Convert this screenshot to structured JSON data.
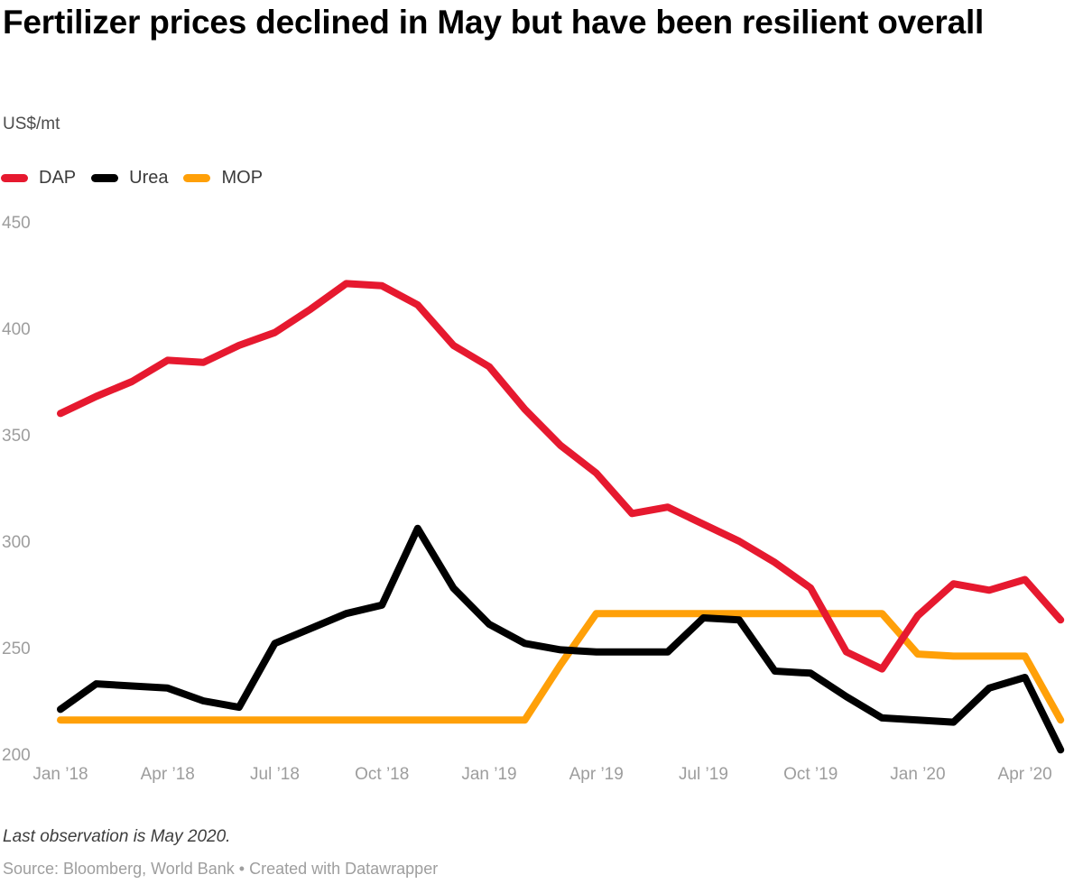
{
  "header": {
    "title": "Fertilizer prices declined in May but have been resilient overall",
    "unit": "US$/mt"
  },
  "chart_data": {
    "type": "line",
    "x_months": [
      "Jan 2018",
      "Feb 2018",
      "Mar 2018",
      "Apr 2018",
      "May 2018",
      "Jun 2018",
      "Jul 2018",
      "Aug 2018",
      "Sep 2018",
      "Oct 2018",
      "Nov 2018",
      "Dec 2018",
      "Jan 2019",
      "Feb 2019",
      "Mar 2019",
      "Apr 2019",
      "May 2019",
      "Jun 2019",
      "Jul 2019",
      "Aug 2019",
      "Sep 2019",
      "Oct 2019",
      "Nov 2019",
      "Dec 2019",
      "Jan 2020",
      "Feb 2020",
      "Mar 2020",
      "Apr 2020",
      "May 2020"
    ],
    "x_ticks": [
      {
        "label": "Jan ’18",
        "month_index": 0
      },
      {
        "label": "Apr ’18",
        "month_index": 3
      },
      {
        "label": "Jul ’18",
        "month_index": 6
      },
      {
        "label": "Oct ’18",
        "month_index": 9
      },
      {
        "label": "Jan ’19",
        "month_index": 12
      },
      {
        "label": "Apr ’19",
        "month_index": 15
      },
      {
        "label": "Jul ’19",
        "month_index": 18
      },
      {
        "label": "Oct ’19",
        "month_index": 21
      },
      {
        "label": "Jan ’20",
        "month_index": 24
      },
      {
        "label": "Apr ’20",
        "month_index": 27
      }
    ],
    "y_ticks": [
      200,
      250,
      300,
      350,
      400,
      450
    ],
    "y_range": [
      200,
      450
    ],
    "grid": "none",
    "legend_position": "top-left",
    "series": [
      {
        "name": "DAP",
        "color": "#e6192f",
        "values": [
          360,
          368,
          375,
          385,
          384,
          392,
          398,
          409,
          421,
          420,
          411,
          392,
          382,
          362,
          345,
          332,
          313,
          316,
          308,
          300,
          290,
          278,
          248,
          240,
          265,
          280,
          277,
          282,
          263
        ]
      },
      {
        "name": "Urea",
        "color": "#000000",
        "values": [
          221,
          233,
          232,
          231,
          225,
          222,
          252,
          259,
          266,
          270,
          306,
          278,
          261,
          252,
          249,
          248,
          248,
          248,
          264,
          263,
          239,
          238,
          227,
          217,
          216,
          215,
          231,
          236,
          202
        ]
      },
      {
        "name": "MOP",
        "color": "#ffa008",
        "values": [
          216,
          216,
          216,
          216,
          216,
          216,
          216,
          216,
          216,
          216,
          216,
          216,
          216,
          216,
          242,
          266,
          266,
          266,
          266,
          266,
          266,
          266,
          266,
          266,
          247,
          246,
          246,
          246,
          216
        ]
      }
    ]
  },
  "footer": {
    "note": "Last observation is May 2020.",
    "source": "Source: Bloomberg, World Bank • Created with Datawrapper"
  },
  "colors": {
    "axis_label": "#9d9d9d",
    "title": "#000000",
    "note": "#3d3d3d",
    "source": "#9e9e9e"
  }
}
